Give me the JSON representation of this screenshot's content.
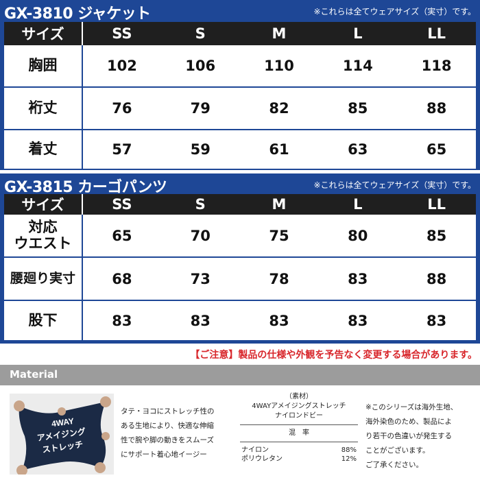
{
  "jacket": {
    "title": "GX-3810 ジャケット",
    "note": "※これらは全てウェアサイズ（実寸）です。",
    "header": [
      "サイズ",
      "SS",
      "S",
      "M",
      "L",
      "LL"
    ],
    "rows": [
      {
        "label": "胸囲",
        "values": [
          "102",
          "106",
          "110",
          "114",
          "118"
        ]
      },
      {
        "label": "裄丈",
        "values": [
          "76",
          "79",
          "82",
          "85",
          "88"
        ]
      },
      {
        "label": "着丈",
        "values": [
          "57",
          "59",
          "61",
          "63",
          "65"
        ]
      }
    ]
  },
  "pants": {
    "title": "GX-3815 カーゴパンツ",
    "note": "※これらは全てウェアサイズ（実寸）です。",
    "header": [
      "サイズ",
      "SS",
      "S",
      "M",
      "L",
      "LL"
    ],
    "rows": [
      {
        "label": "対応\nウエスト",
        "values": [
          "65",
          "70",
          "75",
          "80",
          "85"
        ]
      },
      {
        "label": "腰廻り実寸",
        "values": [
          "68",
          "73",
          "78",
          "83",
          "88"
        ]
      },
      {
        "label": "股下",
        "values": [
          "83",
          "83",
          "83",
          "83",
          "83"
        ]
      }
    ]
  },
  "caution": "【ご注意】製品の仕様や外観を予告なく変更する場合があります。",
  "material": {
    "heading": "Material",
    "image_text": [
      "4WAY",
      "アメイジング",
      "ストレッチ"
    ],
    "description": [
      "タテ・ヨコにストレッチ性の",
      "ある生地により、快適な伸縮",
      "性で腕や脚の動きをスムーズ",
      "にサポート着心地イージー"
    ],
    "spec_title": "（素材）",
    "spec_name_1": "4WAYアメイジングストレッチ",
    "spec_name_2": "ナイロンドビー",
    "blend_label": "混　率",
    "blend": [
      {
        "name": "ナイロン",
        "pct": "88%"
      },
      {
        "name": "ポリウレタン",
        "pct": "12%"
      }
    ],
    "note": [
      "※このシリーズは海外生地、",
      "海外染色のため、製品によ",
      "り若干の色違いが発生する",
      "ことがございます。",
      "ご了承ください。"
    ]
  },
  "colors": {
    "frame": "#1e4796",
    "header_bg": "#1f1f1f",
    "caution": "#d8262b",
    "material_bar": "#9c9c9c",
    "fabric": "#1b2a45"
  }
}
